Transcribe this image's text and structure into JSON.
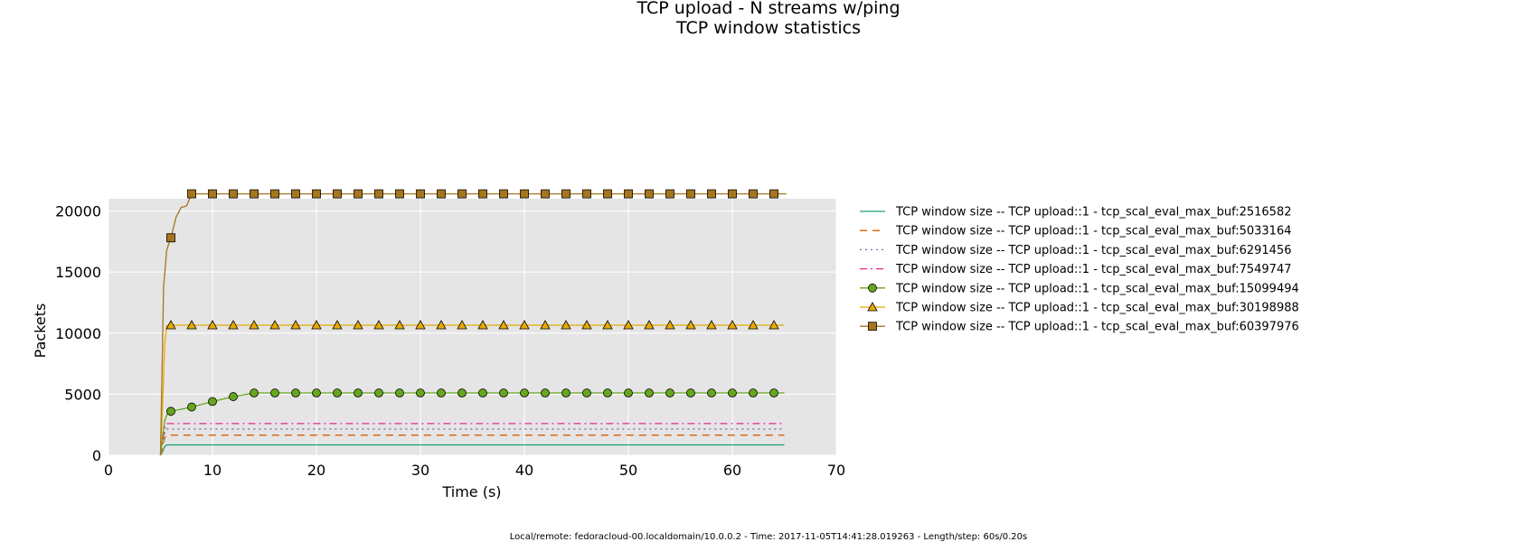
{
  "chart_data": {
    "type": "line",
    "title": "TCP upload - N streams w/ping",
    "subtitle": "TCP window statistics",
    "xlabel": "Time (s)",
    "ylabel": "Packets",
    "xlim": [
      0,
      70
    ],
    "ylim": [
      0,
      21000
    ],
    "xticks": [
      0,
      10,
      20,
      30,
      40,
      50,
      60,
      70
    ],
    "yticks": [
      0,
      5000,
      10000,
      15000,
      20000
    ],
    "grid": true,
    "legend_position": "outside-right",
    "footer": "Local/remote: fedoracloud-00.localdomain/10.0.0.2 - Time: 2017-11-05T14:41:28.019263 - Length/step: 60s/0.20s",
    "series": [
      {
        "name": "TCP window size -- TCP upload::1 - tcp_scal_eval_max_buf:2516582",
        "color": "#1b9e77",
        "dash": "",
        "marker": "none",
        "x": [
          5.0,
          5.2,
          5.4,
          5.6,
          6,
          65
        ],
        "y": [
          0,
          300,
          700,
          850,
          850,
          850
        ]
      },
      {
        "name": "TCP window size -- TCP upload::1 - tcp_scal_eval_max_buf:5033164",
        "color": "#d95f02",
        "dash": "8,6",
        "marker": "none",
        "x": [
          5.0,
          5.2,
          5.4,
          5.6,
          6,
          65
        ],
        "y": [
          0,
          700,
          1400,
          1650,
          1650,
          1650
        ]
      },
      {
        "name": "TCP window size -- TCP upload::1 - tcp_scal_eval_max_buf:6291456",
        "color": "#7570b3",
        "dash": "2,4",
        "marker": "none",
        "x": [
          5.0,
          5.2,
          5.4,
          5.6,
          6,
          65
        ],
        "y": [
          0,
          900,
          1800,
          2150,
          2150,
          2150
        ]
      },
      {
        "name": "TCP window size -- TCP upload::1 - tcp_scal_eval_max_buf:7549747",
        "color": "#e7298a",
        "dash": "8,4,2,4",
        "marker": "none",
        "x": [
          5.0,
          5.2,
          5.4,
          5.6,
          6,
          65
        ],
        "y": [
          0,
          1100,
          2200,
          2600,
          2600,
          2600
        ]
      },
      {
        "name": "TCP window size -- TCP upload::1 - tcp_scal_eval_max_buf:15099494",
        "color": "#66a61e",
        "dash": "",
        "marker": "circle",
        "x": [
          5.0,
          5.2,
          5.4,
          5.6,
          6,
          8,
          10,
          12,
          14,
          16,
          18,
          20,
          22,
          24,
          26,
          28,
          30,
          32,
          34,
          36,
          38,
          40,
          42,
          44,
          46,
          48,
          50,
          52,
          54,
          56,
          58,
          60,
          62,
          64,
          65
        ],
        "y": [
          0,
          1500,
          2800,
          3300,
          3600,
          3950,
          4400,
          4800,
          5100,
          5100,
          5100,
          5100,
          5100,
          5100,
          5100,
          5100,
          5100,
          5100,
          5100,
          5100,
          5100,
          5100,
          5100,
          5100,
          5100,
          5100,
          5100,
          5100,
          5100,
          5100,
          5100,
          5100,
          5100,
          5100,
          5100
        ],
        "marker_x": [
          6,
          8,
          10,
          12,
          14,
          16,
          18,
          20,
          22,
          24,
          26,
          28,
          30,
          32,
          34,
          36,
          38,
          40,
          42,
          44,
          46,
          48,
          50,
          52,
          54,
          56,
          58,
          60,
          62,
          64
        ]
      },
      {
        "name": "TCP window size -- TCP upload::1 - tcp_scal_eval_max_buf:30198988",
        "color": "#e6ab02",
        "dash": "",
        "marker": "triangle",
        "x": [
          5.0,
          5.2,
          5.4,
          5.6,
          6,
          65
        ],
        "y": [
          0,
          4000,
          9000,
          10600,
          10650,
          10650
        ],
        "marker_x": [
          6,
          8,
          10,
          12,
          14,
          16,
          18,
          20,
          22,
          24,
          26,
          28,
          30,
          32,
          34,
          36,
          38,
          40,
          42,
          44,
          46,
          48,
          50,
          52,
          54,
          56,
          58,
          60,
          62,
          64
        ]
      },
      {
        "name": "TCP window size -- TCP upload::1 - tcp_scal_eval_max_buf:60397976",
        "color": "#a6761d",
        "dash": "",
        "marker": "square",
        "x": [
          5.0,
          5.3,
          5.6,
          6.0,
          6.5,
          7.0,
          7.5,
          8.0,
          10,
          65.2
        ],
        "y": [
          0,
          13800,
          16800,
          17800,
          19500,
          20300,
          20400,
          21400,
          21400,
          21400
        ],
        "marker_x": [
          6,
          8,
          10,
          12,
          14,
          16,
          18,
          20,
          22,
          24,
          26,
          28,
          30,
          32,
          34,
          36,
          38,
          40,
          42,
          44,
          46,
          48,
          50,
          52,
          54,
          56,
          58,
          60,
          62,
          64
        ]
      }
    ]
  }
}
